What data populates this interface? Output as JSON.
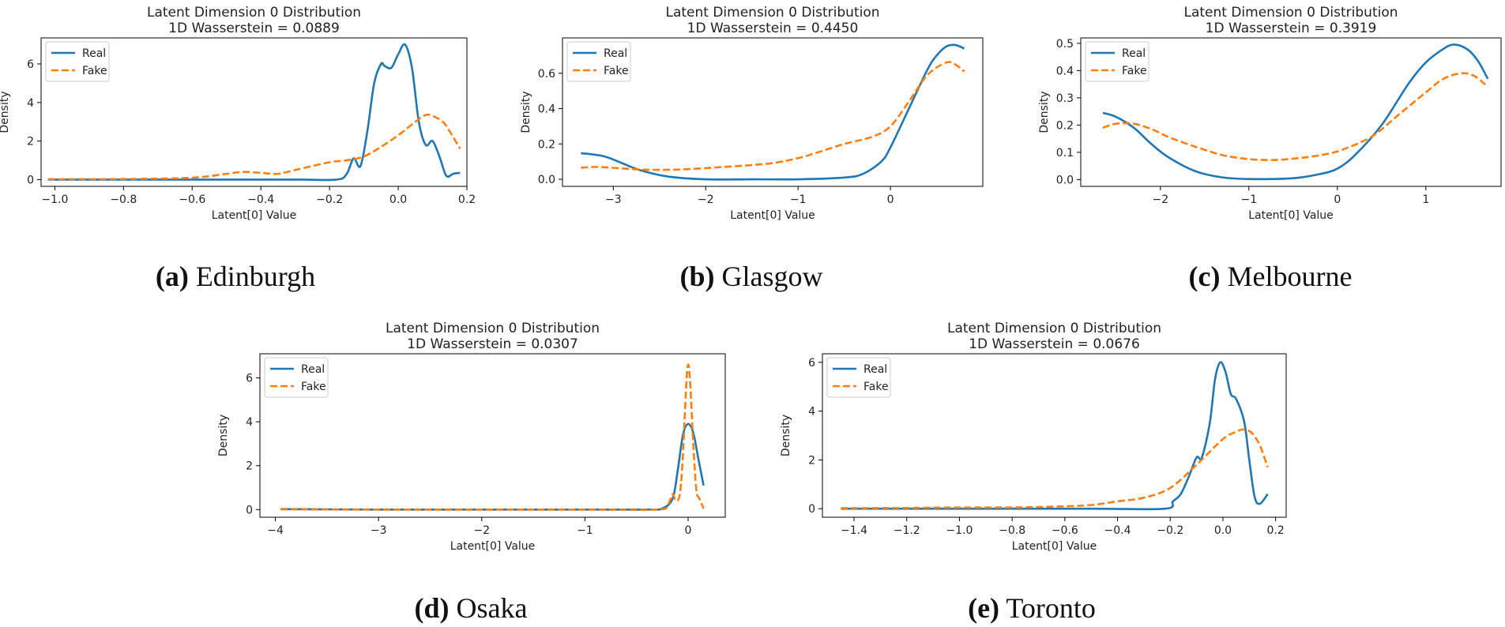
{
  "colors": {
    "real": "#1f77b4",
    "fake": "#ff7f0e"
  },
  "chart_data": [
    {
      "type": "line",
      "title": "Latent Dimension 0 Distribution",
      "subtitle": "1D Wasserstein = 0.0889",
      "xlabel": "Latent[0] Value",
      "ylabel": "Density",
      "xlim": [
        -1.04,
        0.2
      ],
      "ylim": [
        -0.35,
        7.35
      ],
      "xticks": [
        -1.0,
        -0.8,
        -0.6,
        -0.4,
        -0.2,
        0.0,
        0.2
      ],
      "xtick_labels": [
        "−1.0",
        "−0.8",
        "−0.6",
        "−0.4",
        "−0.2",
        "0.0",
        "0.2"
      ],
      "yticks": [
        0,
        2,
        4,
        6
      ],
      "ytick_labels": [
        "0",
        "2",
        "4",
        "6"
      ],
      "legend": "top-left",
      "caption_label": "(a)",
      "caption_text": "Edinburgh",
      "series": [
        {
          "name": "Real",
          "style": "solid",
          "x": [
            -1.02,
            -0.6,
            -0.3,
            -0.18,
            -0.15,
            -0.13,
            -0.11,
            -0.09,
            -0.07,
            -0.05,
            -0.04,
            -0.02,
            0.0,
            0.02,
            0.04,
            0.06,
            0.08,
            0.1,
            0.12,
            0.14,
            0.16,
            0.18
          ],
          "y": [
            0,
            0,
            0,
            0,
            0.3,
            1.1,
            0.7,
            2.5,
            5.0,
            6.0,
            5.9,
            5.8,
            6.5,
            7.0,
            5.8,
            3.0,
            1.8,
            2.0,
            1.2,
            0.2,
            0.3,
            0.35
          ]
        },
        {
          "name": "Fake",
          "style": "dashed",
          "x": [
            -1.02,
            -0.8,
            -0.6,
            -0.5,
            -0.45,
            -0.4,
            -0.35,
            -0.3,
            -0.2,
            -0.15,
            -0.1,
            -0.05,
            0.0,
            0.05,
            0.08,
            0.1,
            0.13,
            0.15,
            0.18
          ],
          "y": [
            0.02,
            0.03,
            0.1,
            0.3,
            0.4,
            0.35,
            0.3,
            0.5,
            0.9,
            1.0,
            1.2,
            1.7,
            2.3,
            3.0,
            3.35,
            3.3,
            3.0,
            2.5,
            1.6
          ]
        }
      ]
    },
    {
      "type": "line",
      "title": "Latent Dimension 0 Distribution",
      "subtitle": "1D Wasserstein = 0.4450",
      "xlabel": "Latent[0] Value",
      "ylabel": "Density",
      "xlim": [
        -3.55,
        1.0
      ],
      "ylim": [
        -0.04,
        0.8
      ],
      "xticks": [
        -3,
        -2,
        -1,
        0
      ],
      "xtick_labels": [
        "−3",
        "−2",
        "−1",
        "0"
      ],
      "yticks": [
        0.0,
        0.2,
        0.4,
        0.6
      ],
      "ytick_labels": [
        "0.0",
        "0.2",
        "0.4",
        "0.6"
      ],
      "legend": "top-left",
      "caption_label": "(b)",
      "caption_text": "Glasgow",
      "series": [
        {
          "name": "Real",
          "style": "solid",
          "x": [
            -3.35,
            -3.1,
            -2.9,
            -2.7,
            -2.4,
            -2.0,
            -1.5,
            -1.0,
            -0.5,
            -0.3,
            -0.1,
            0.0,
            0.2,
            0.4,
            0.5,
            0.6,
            0.7,
            0.8
          ],
          "y": [
            0.148,
            0.13,
            0.09,
            0.05,
            0.015,
            0.0,
            0.0,
            0.0,
            0.01,
            0.03,
            0.1,
            0.18,
            0.4,
            0.62,
            0.7,
            0.75,
            0.76,
            0.74
          ]
        },
        {
          "name": "Fake",
          "style": "dashed",
          "x": [
            -3.35,
            -3.2,
            -3.0,
            -2.7,
            -2.3,
            -1.8,
            -1.3,
            -1.0,
            -0.8,
            -0.5,
            -0.2,
            0.0,
            0.2,
            0.4,
            0.6,
            0.7,
            0.8
          ],
          "y": [
            0.065,
            0.07,
            0.065,
            0.055,
            0.055,
            0.07,
            0.09,
            0.12,
            0.15,
            0.2,
            0.24,
            0.3,
            0.44,
            0.59,
            0.66,
            0.65,
            0.61
          ]
        }
      ]
    },
    {
      "type": "line",
      "title": "Latent Dimension 0 Distribution",
      "subtitle": "1D Wasserstein = 0.3919",
      "xlabel": "Latent[0] Value",
      "ylabel": "Density",
      "xlim": [
        -2.9,
        1.85
      ],
      "ylim": [
        -0.025,
        0.52
      ],
      "xticks": [
        -2,
        -1,
        0,
        1
      ],
      "xtick_labels": [
        "−2",
        "−1",
        "0",
        "1"
      ],
      "yticks": [
        0.0,
        0.1,
        0.2,
        0.3,
        0.4,
        0.5
      ],
      "ytick_labels": [
        "0.0",
        "0.1",
        "0.2",
        "0.3",
        "0.4",
        "0.5"
      ],
      "legend": "top-left",
      "caption_label": "(c)",
      "caption_text": "Melbourne",
      "series": [
        {
          "name": "Real",
          "style": "solid",
          "x": [
            -2.65,
            -2.5,
            -2.3,
            -2.1,
            -1.9,
            -1.6,
            -1.3,
            -1.0,
            -0.5,
            -0.2,
            0.0,
            0.2,
            0.5,
            0.8,
            1.0,
            1.2,
            1.3,
            1.4,
            1.5,
            1.6,
            1.7
          ],
          "y": [
            0.245,
            0.23,
            0.19,
            0.13,
            0.08,
            0.03,
            0.008,
            0.002,
            0.005,
            0.02,
            0.04,
            0.09,
            0.2,
            0.35,
            0.43,
            0.48,
            0.495,
            0.49,
            0.47,
            0.43,
            0.37
          ]
        },
        {
          "name": "Fake",
          "style": "dashed",
          "x": [
            -2.65,
            -2.5,
            -2.3,
            -2.1,
            -1.9,
            -1.6,
            -1.3,
            -1.0,
            -0.7,
            -0.4,
            -0.1,
            0.1,
            0.4,
            0.7,
            1.0,
            1.2,
            1.4,
            1.55,
            1.7
          ],
          "y": [
            0.19,
            0.205,
            0.205,
            0.185,
            0.155,
            0.12,
            0.09,
            0.075,
            0.072,
            0.08,
            0.095,
            0.115,
            0.16,
            0.24,
            0.32,
            0.37,
            0.39,
            0.38,
            0.34
          ]
        }
      ]
    },
    {
      "type": "line",
      "title": "Latent Dimension 0 Distribution",
      "subtitle": "1D Wasserstein = 0.0307",
      "xlabel": "Latent[0] Value",
      "ylabel": "Density",
      "xlim": [
        -4.15,
        0.36
      ],
      "ylim": [
        -0.35,
        7.1
      ],
      "xticks": [
        -4,
        -3,
        -2,
        -1,
        0
      ],
      "xtick_labels": [
        "−4",
        "−3",
        "−2",
        "−1",
        "0"
      ],
      "yticks": [
        0,
        2,
        4,
        6
      ],
      "ytick_labels": [
        "0",
        "2",
        "4",
        "6"
      ],
      "legend": "top-left",
      "caption_label": "(d)",
      "caption_text": "Osaka",
      "series": [
        {
          "name": "Real",
          "style": "solid",
          "x": [
            -3.95,
            -3.0,
            -2.0,
            -1.0,
            -0.4,
            -0.25,
            -0.15,
            -0.1,
            -0.05,
            0.0,
            0.05,
            0.1,
            0.15
          ],
          "y": [
            0.02,
            0.0,
            0.0,
            0.0,
            0.0,
            0.05,
            0.5,
            1.8,
            3.4,
            3.9,
            3.5,
            2.3,
            1.1
          ]
        },
        {
          "name": "Fake",
          "style": "dashed",
          "x": [
            -3.95,
            -3.0,
            -2.0,
            -1.0,
            -0.3,
            -0.2,
            -0.15,
            -0.12,
            -0.08,
            -0.05,
            -0.02,
            0.0,
            0.02,
            0.05,
            0.08,
            0.11,
            0.15
          ],
          "y": [
            0.01,
            0.0,
            0.0,
            0.0,
            0.0,
            0.2,
            0.7,
            0.4,
            0.7,
            2.5,
            5.5,
            6.6,
            5.8,
            3.0,
            0.9,
            0.5,
            0.05
          ]
        }
      ]
    },
    {
      "type": "line",
      "title": "Latent Dimension 0 Distribution",
      "subtitle": "1D Wasserstein = 0.0676",
      "xlabel": "Latent[0] Value",
      "ylabel": "Density",
      "xlim": [
        -1.52,
        0.24
      ],
      "ylim": [
        -0.35,
        6.35
      ],
      "xticks": [
        -1.4,
        -1.2,
        -1.0,
        -0.8,
        -0.6,
        -0.4,
        -0.2,
        0.0,
        0.2
      ],
      "xtick_labels": [
        "−1.4",
        "−1.2",
        "−1.0",
        "−0.8",
        "−0.6",
        "−0.4",
        "−0.2",
        "0.0",
        "0.2"
      ],
      "yticks": [
        0,
        2,
        4,
        6
      ],
      "ytick_labels": [
        "0",
        "2",
        "4",
        "6"
      ],
      "legend": "top-left",
      "caption_label": "(e)",
      "caption_text": "Toronto",
      "series": [
        {
          "name": "Real",
          "style": "solid",
          "x": [
            -1.45,
            -1.0,
            -0.5,
            -0.22,
            -0.19,
            -0.16,
            -0.13,
            -0.1,
            -0.08,
            -0.05,
            -0.03,
            -0.01,
            0.01,
            0.03,
            0.05,
            0.08,
            0.1,
            0.12,
            0.14,
            0.17
          ],
          "y": [
            0.0,
            0.0,
            0.0,
            0.0,
            0.3,
            0.6,
            1.3,
            2.1,
            2.1,
            3.5,
            5.3,
            6.0,
            5.6,
            4.7,
            4.5,
            3.6,
            2.0,
            0.5,
            0.2,
            0.6
          ]
        },
        {
          "name": "Fake",
          "style": "dashed",
          "x": [
            -1.45,
            -1.2,
            -1.0,
            -0.8,
            -0.6,
            -0.5,
            -0.4,
            -0.3,
            -0.2,
            -0.1,
            0.0,
            0.05,
            0.08,
            0.11,
            0.14,
            0.17
          ],
          "y": [
            0.02,
            0.03,
            0.05,
            0.05,
            0.1,
            0.15,
            0.3,
            0.45,
            0.85,
            1.8,
            2.85,
            3.15,
            3.25,
            3.1,
            2.6,
            1.7
          ]
        }
      ]
    }
  ]
}
